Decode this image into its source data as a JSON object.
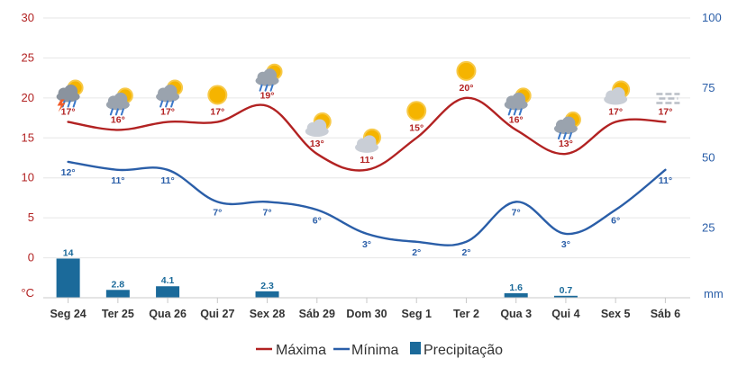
{
  "chart_data": {
    "type": "line",
    "categories": [
      "Seg 24",
      "Ter 25",
      "Qua 26",
      "Qui 27",
      "Sex 28",
      "Sáb 29",
      "Dom 30",
      "Seg 1",
      "Ter 2",
      "Qua 3",
      "Qui 4",
      "Sex 5",
      "Sáb 6"
    ],
    "series": [
      {
        "name": "Máxima",
        "values": [
          17,
          16,
          17,
          17,
          19,
          13,
          11,
          15,
          20,
          16,
          13,
          17,
          17
        ],
        "labels": [
          "17°",
          "16°",
          "17°",
          "17°",
          "19°",
          "13°",
          "11°",
          "15°",
          "20°",
          "16°",
          "13°",
          "17°",
          "17°"
        ],
        "color": "#b22222"
      },
      {
        "name": "Mínima",
        "values": [
          12,
          11,
          11,
          7,
          7,
          6,
          3,
          2,
          2,
          7,
          3,
          6,
          11
        ],
        "labels": [
          "12°",
          "11°",
          "11°",
          "7°",
          "7°",
          "6°",
          "3°",
          "2°",
          "2°",
          "7°",
          "3°",
          "6°",
          "11°"
        ],
        "color": "#2a5ea8"
      },
      {
        "name": "Precipitação",
        "type": "bar",
        "values": [
          14,
          2.8,
          4.1,
          0,
          2.3,
          0,
          0,
          0,
          0,
          1.6,
          0.7,
          0,
          0
        ],
        "labels": [
          "14",
          "2.8",
          "4.1",
          "",
          "2.3",
          "",
          "",
          "",
          "",
          "1.6",
          "0.7",
          "",
          ""
        ],
        "color": "#1b6a9a"
      }
    ],
    "y_left": {
      "ticks": [
        "30",
        "25",
        "20",
        "15",
        "10",
        "5",
        "0"
      ],
      "unit": "°C",
      "range": [
        -5,
        30
      ]
    },
    "y_right": {
      "ticks": [
        "100",
        "75",
        "50",
        "25"
      ],
      "unit": "mm",
      "range": [
        0,
        100
      ]
    },
    "weather_icons": [
      "storm-rain-icon",
      "rain-sun-icon",
      "rain-sun-icon",
      "sun-icon",
      "rain-sun-icon",
      "sun-cloud-icon",
      "sun-cloud-icon",
      "sun-icon",
      "sun-icon",
      "rain-sun-icon",
      "rain-sun-icon",
      "sun-cloud-icon",
      "fog-icon"
    ],
    "grid": true,
    "legend_position": "bottom-center"
  },
  "legend": {
    "max_label": "Máxima",
    "min_label": "Mínima",
    "prec_label": "Precipitação"
  }
}
